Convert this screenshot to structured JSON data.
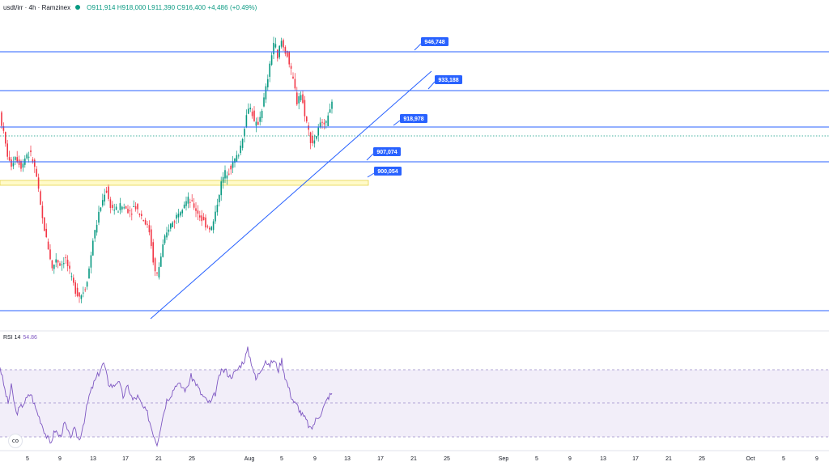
{
  "header": {
    "symbol": "usdt/irr · 4h · Ramzinex",
    "ohlc": "O911,914 H918,000 L911,390 C916,400 +4,486 (+0.49%)",
    "status_color": "#089981"
  },
  "rsi_label": {
    "name": "RSI 14",
    "value": "54.86"
  },
  "logo_text": "co",
  "colors": {
    "up": "#089981",
    "down": "#f23645",
    "line": "#2962ff",
    "rsi": "#7e57c2",
    "zone": "#fff59d"
  },
  "chart_data": {
    "type": "candlestick",
    "x_ticks": [
      "5",
      "9",
      "13",
      "17",
      "21",
      "25",
      "Aug",
      "5",
      "9",
      "13",
      "17",
      "21",
      "25",
      "Sep",
      "5",
      "9",
      "13",
      "17",
      "21",
      "25",
      "Oct",
      "5",
      "9"
    ],
    "ylim": [
      828000,
      957000
    ],
    "horizontal_levels": [
      {
        "label": "946,748",
        "value": 946748
      },
      {
        "label": "933,188",
        "value": 933188
      },
      {
        "label": "918,978",
        "value": 918978
      },
      {
        "label": "907,074",
        "value": 907074
      },
      {
        "label": "900,054",
        "value": 900054
      },
      {
        "label": "",
        "value": 852000
      }
    ],
    "dotted_level": 916400,
    "support_zone": [
      900054,
      902000
    ],
    "trendline": {
      "from": [
        "Jul 20",
        845000
      ],
      "to": [
        "Aug 22",
        936000
      ]
    },
    "price_path": [
      [
        0,
        915000
      ],
      [
        6,
        905000
      ],
      [
        10,
        898000
      ],
      [
        14,
        893000
      ],
      [
        20,
        897000
      ],
      [
        28,
        893000
      ],
      [
        34,
        898000
      ],
      [
        40,
        897000
      ],
      [
        46,
        890000
      ],
      [
        50,
        880000
      ],
      [
        54,
        872000
      ],
      [
        58,
        866000
      ],
      [
        62,
        860000
      ],
      [
        66,
        853000
      ],
      [
        70,
        858000
      ],
      [
        76,
        855000
      ],
      [
        82,
        858000
      ],
      [
        88,
        851000
      ],
      [
        94,
        846000
      ],
      [
        100,
        843000
      ],
      [
        106,
        846000
      ],
      [
        112,
        855000
      ],
      [
        116,
        865000
      ],
      [
        120,
        870000
      ],
      [
        124,
        876000
      ],
      [
        128,
        880000
      ],
      [
        132,
        885000
      ],
      [
        136,
        879000
      ],
      [
        140,
        877000
      ],
      [
        146,
        876000
      ],
      [
        150,
        878000
      ],
      [
        156,
        877000
      ],
      [
        162,
        876000
      ],
      [
        168,
        878000
      ],
      [
        174,
        875000
      ],
      [
        180,
        872000
      ],
      [
        186,
        868000
      ],
      [
        190,
        858000
      ],
      [
        194,
        850000
      ],
      [
        198,
        855000
      ],
      [
        202,
        862000
      ],
      [
        206,
        866000
      ],
      [
        210,
        870000
      ],
      [
        216,
        872000
      ],
      [
        222,
        876000
      ],
      [
        228,
        879000
      ],
      [
        234,
        880000
      ],
      [
        240,
        878000
      ],
      [
        246,
        875000
      ],
      [
        252,
        872000
      ],
      [
        258,
        870000
      ],
      [
        262,
        869000
      ],
      [
        266,
        873000
      ],
      [
        270,
        880000
      ],
      [
        274,
        886000
      ],
      [
        278,
        890000
      ],
      [
        284,
        892000
      ],
      [
        290,
        895000
      ],
      [
        296,
        898000
      ],
      [
        300,
        903000
      ],
      [
        304,
        910000
      ],
      [
        308,
        916000
      ],
      [
        312,
        915000
      ],
      [
        316,
        908000
      ],
      [
        320,
        910000
      ],
      [
        324,
        914000
      ],
      [
        328,
        920000
      ],
      [
        332,
        927000
      ],
      [
        336,
        935000
      ],
      [
        340,
        942000
      ],
      [
        344,
        934000
      ],
      [
        348,
        942000
      ],
      [
        352,
        938000
      ],
      [
        356,
        936000
      ],
      [
        360,
        930000
      ],
      [
        364,
        925000
      ],
      [
        368,
        918000
      ],
      [
        372,
        922000
      ],
      [
        376,
        916000
      ],
      [
        380,
        910000
      ],
      [
        384,
        904000
      ],
      [
        388,
        902000
      ],
      [
        392,
        905000
      ],
      [
        396,
        908000
      ],
      [
        400,
        912000
      ],
      [
        404,
        909000
      ],
      [
        408,
        916000
      ],
      [
        411,
        916400
      ]
    ],
    "rsi": {
      "upper_band": 70,
      "middle": 50,
      "lower_band": 30,
      "path": [
        [
          0,
          72
        ],
        [
          6,
          58
        ],
        [
          10,
          50
        ],
        [
          14,
          60
        ],
        [
          20,
          44
        ],
        [
          26,
          48
        ],
        [
          32,
          52
        ],
        [
          38,
          56
        ],
        [
          44,
          47
        ],
        [
          50,
          40
        ],
        [
          56,
          32
        ],
        [
          62,
          26
        ],
        [
          68,
          34
        ],
        [
          74,
          30
        ],
        [
          80,
          38
        ],
        [
          86,
          30
        ],
        [
          92,
          34
        ],
        [
          98,
          28
        ],
        [
          104,
          40
        ],
        [
          110,
          54
        ],
        [
          116,
          62
        ],
        [
          122,
          68
        ],
        [
          128,
          74
        ],
        [
          134,
          62
        ],
        [
          140,
          60
        ],
        [
          146,
          64
        ],
        [
          152,
          54
        ],
        [
          158,
          60
        ],
        [
          164,
          52
        ],
        [
          170,
          54
        ],
        [
          176,
          48
        ],
        [
          182,
          44
        ],
        [
          188,
          34
        ],
        [
          194,
          26
        ],
        [
          200,
          40
        ],
        [
          206,
          52
        ],
        [
          212,
          56
        ],
        [
          218,
          62
        ],
        [
          224,
          60
        ],
        [
          230,
          58
        ],
        [
          236,
          66
        ],
        [
          242,
          62
        ],
        [
          248,
          56
        ],
        [
          254,
          52
        ],
        [
          260,
          50
        ],
        [
          266,
          56
        ],
        [
          272,
          68
        ],
        [
          278,
          70
        ],
        [
          284,
          66
        ],
        [
          290,
          68
        ],
        [
          296,
          72
        ],
        [
          302,
          76
        ],
        [
          306,
          82
        ],
        [
          312,
          72
        ],
        [
          316,
          64
        ],
        [
          322,
          70
        ],
        [
          328,
          76
        ],
        [
          332,
          72
        ],
        [
          338,
          76
        ],
        [
          344,
          70
        ],
        [
          348,
          76
        ],
        [
          352,
          66
        ],
        [
          356,
          60
        ],
        [
          360,
          54
        ],
        [
          364,
          50
        ],
        [
          368,
          48
        ],
        [
          372,
          44
        ],
        [
          378,
          40
        ],
        [
          384,
          34
        ],
        [
          390,
          40
        ],
        [
          396,
          44
        ],
        [
          402,
          50
        ],
        [
          406,
          54
        ],
        [
          410,
          56
        ]
      ]
    }
  }
}
